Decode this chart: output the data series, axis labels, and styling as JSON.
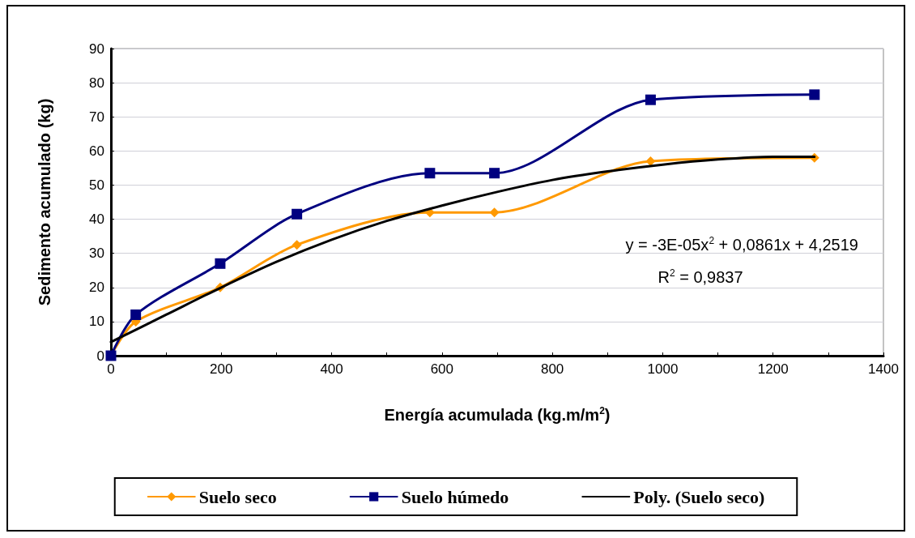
{
  "chart_data": {
    "type": "line",
    "xlabel": "Energía acumulada (kg.m/m$^{2}$)",
    "ylabel": "Sedimento acumulado (kg)",
    "xlim": [
      0,
      1400
    ],
    "xticks": [
      0,
      {
        "value": 100,
        "label": null
      },
      200,
      {
        "value": 300,
        "label": null
      },
      400,
      {
        "value": 500,
        "label": null
      },
      600,
      {
        "value": 700,
        "label": null
      },
      800,
      {
        "value": 900,
        "label": null
      },
      1000,
      {
        "value": 1100,
        "label": null
      },
      1200,
      {
        "value": 1300,
        "label": null
      },
      1400
    ],
    "ylim": [
      0,
      90
    ],
    "yticks": [
      0,
      10,
      20,
      30,
      40,
      50,
      60,
      70,
      80,
      90
    ],
    "grid": "y",
    "legend": "bottom",
    "series": [
      {
        "name": "Suelo seco",
        "color": "#ff9900",
        "marker": "diamond",
        "x": [
          0,
          45,
          198,
          337,
          578,
          695,
          978,
          1275
        ],
        "values": [
          0,
          10,
          20,
          32.5,
          42,
          42,
          57,
          58
        ]
      },
      {
        "name": "Suelo húmedo",
        "color": "#000080",
        "marker": "square",
        "x": [
          0,
          45,
          198,
          337,
          578,
          695,
          978,
          1275
        ],
        "values": [
          0,
          12,
          27,
          41.5,
          53.5,
          53.5,
          75,
          76.5
        ]
      },
      {
        "name": "Poly. (Suelo seco)",
        "color": "#000000",
        "marker": "none",
        "x": [
          0,
          100,
          200,
          300,
          400,
          500,
          600,
          700,
          800,
          900,
          1000,
          1100,
          1200,
          1275
        ],
        "values": [
          4,
          12,
          20,
          27.5,
          34,
          39.5,
          44,
          48,
          51.5,
          54,
          56,
          57.5,
          58.3,
          58.3
        ]
      }
    ],
    "annotations": [
      "y = -3E-05x$^{2}$ + 0,0861x + 4,2519",
      "R$^{2}$ = 0,9837"
    ]
  }
}
